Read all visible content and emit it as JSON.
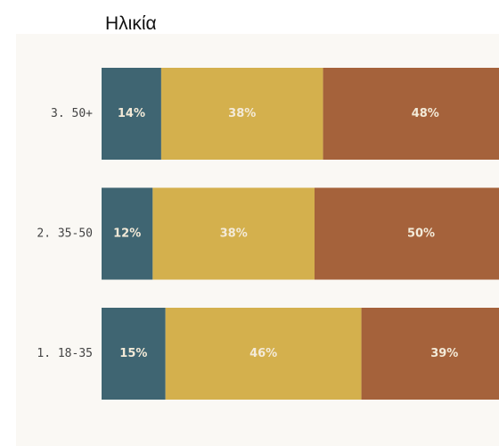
{
  "chart_data": {
    "type": "bar",
    "orientation": "horizontal",
    "stacked": true,
    "title": "Ηλικία",
    "categories": [
      "3. 50+",
      "2. 35-50",
      "1. 18-35"
    ],
    "series": [
      {
        "color": "#3f6572",
        "values": [
          14,
          12,
          15
        ],
        "value_labels": [
          "14%",
          "12%",
          "15%"
        ]
      },
      {
        "color": "#d4b04d",
        "values": [
          38,
          38,
          46
        ],
        "value_labels": [
          "38%",
          "38%",
          "46%"
        ]
      },
      {
        "color": "#a5623b",
        "values": [
          48,
          50,
          39
        ],
        "value_labels": [
          "48%",
          "50%",
          "39%"
        ]
      }
    ]
  }
}
